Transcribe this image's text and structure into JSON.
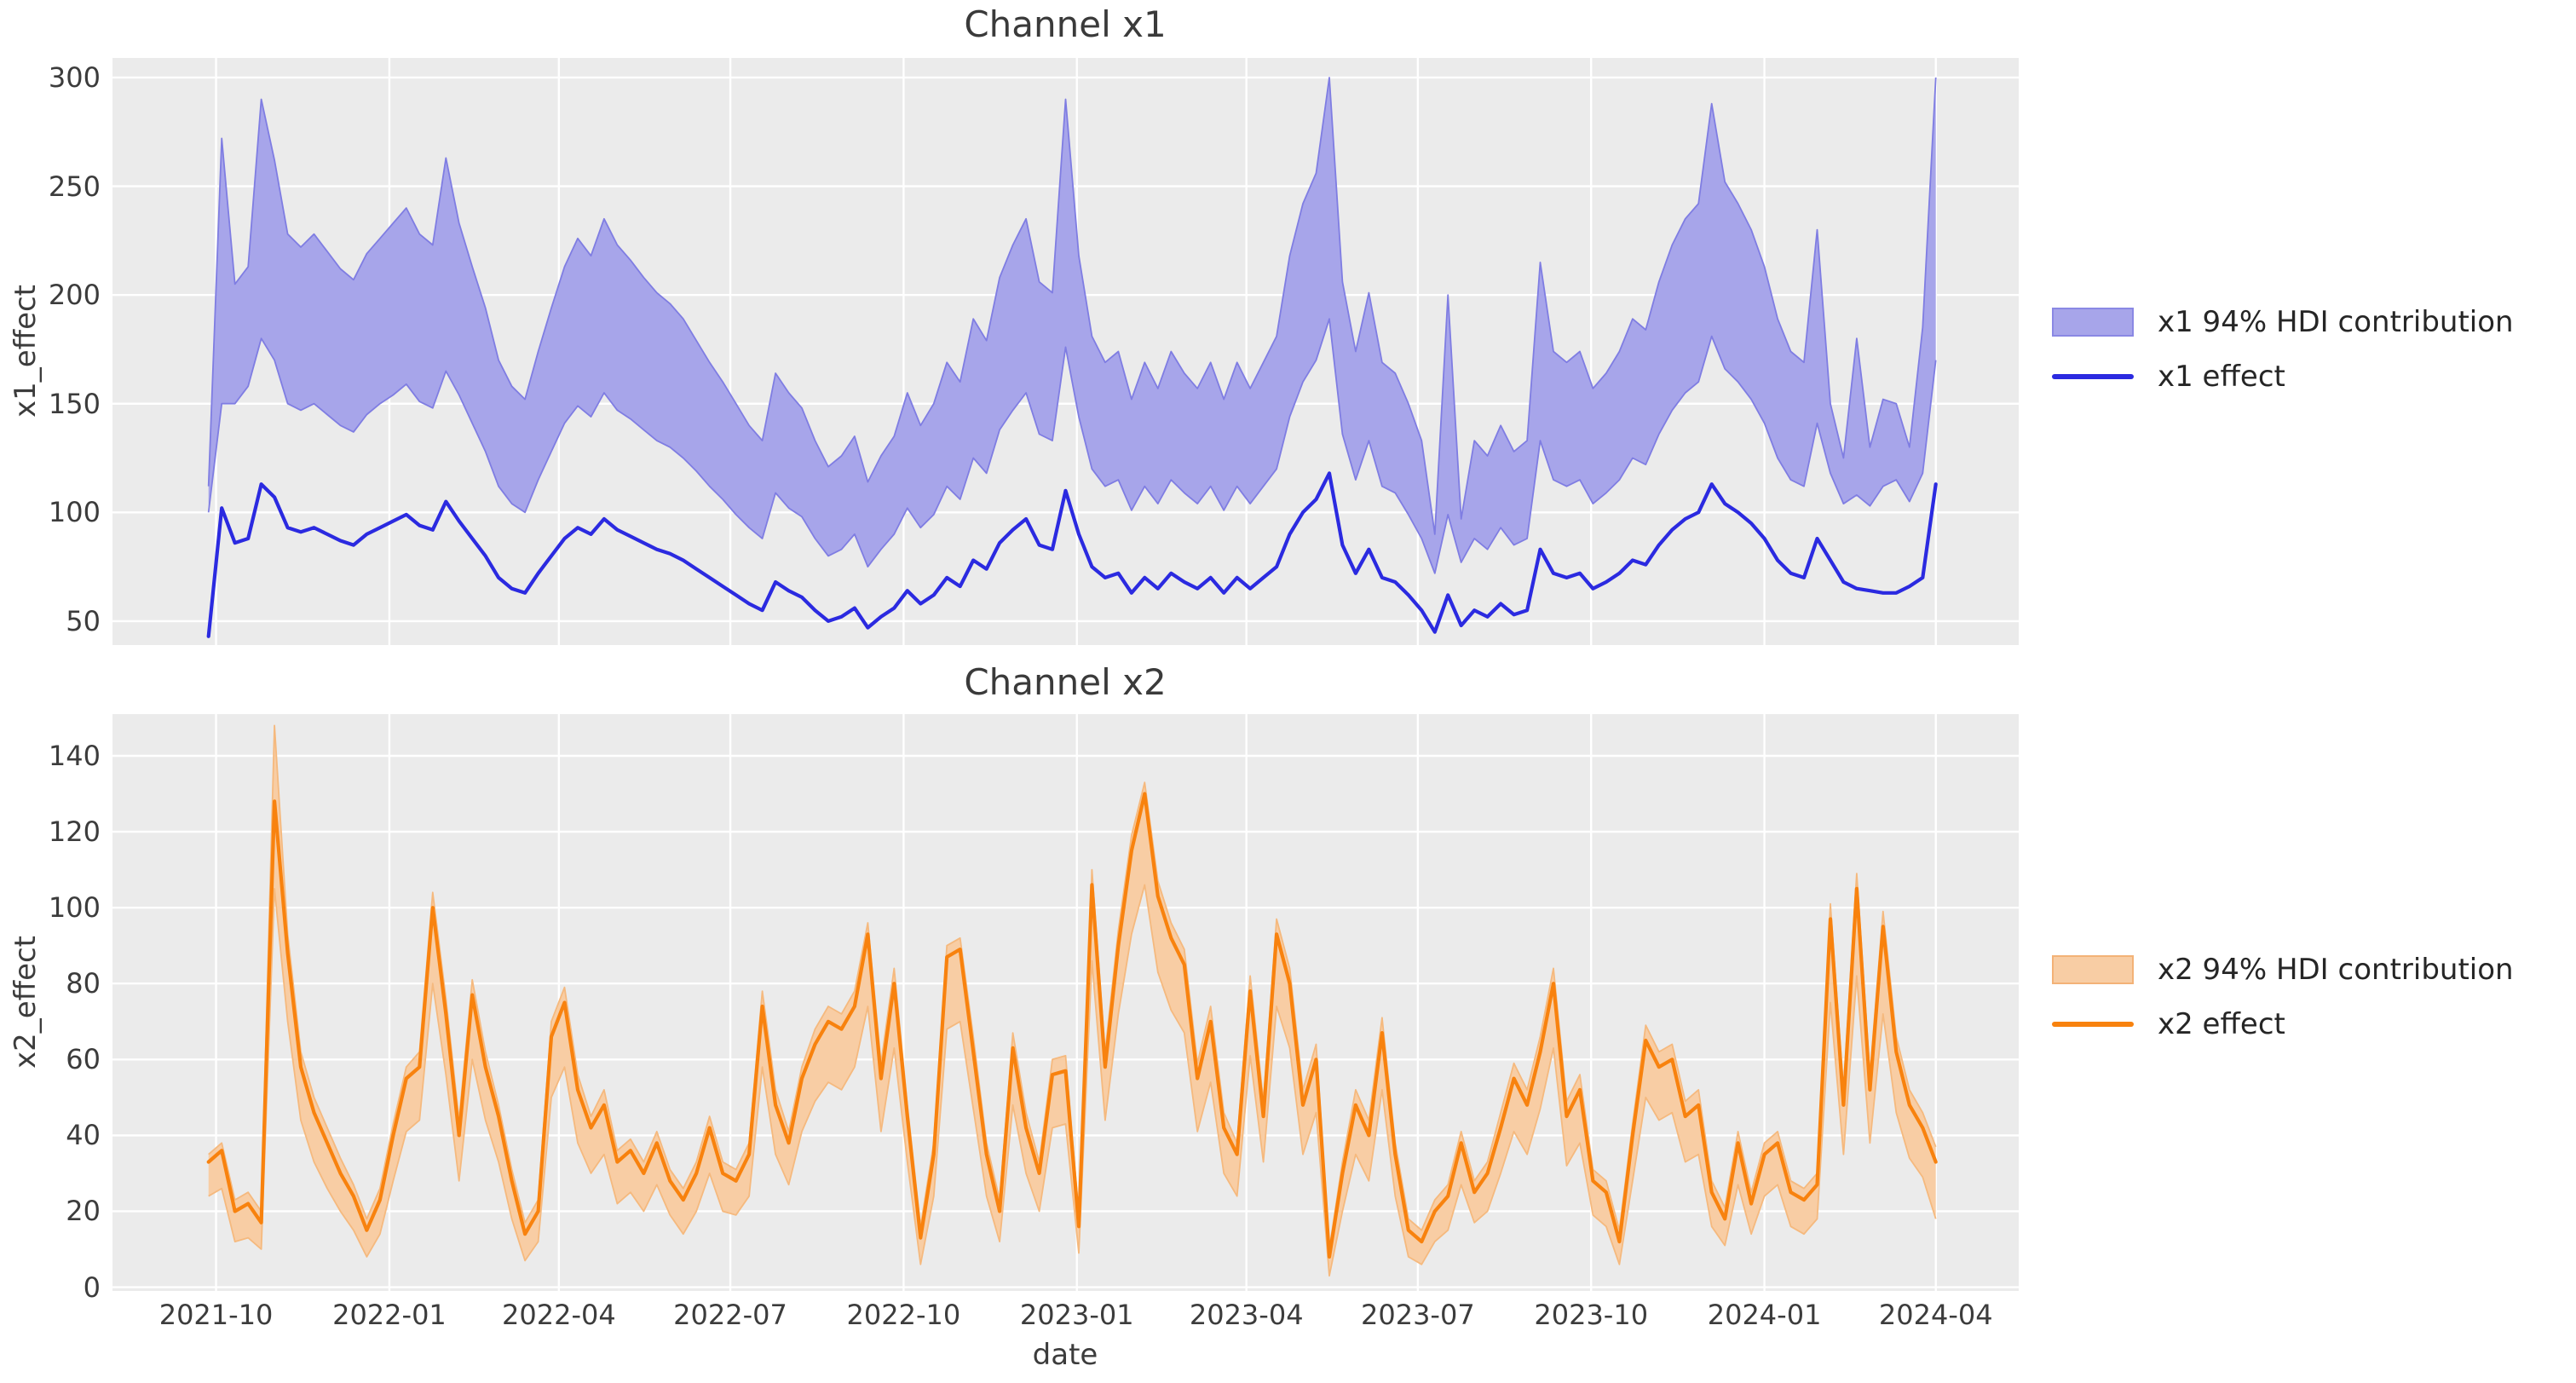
{
  "figure": {
    "background": "#ffffff",
    "plot_background": "#ebebeb",
    "grid_color": "#ffffff",
    "text_color": "#3c3c3c",
    "x_range": [
      "2021-08-07",
      "2024-05-15"
    ]
  },
  "chart_data": [
    {
      "type": "line",
      "title": "Channel x1",
      "ylabel": "x1_effect",
      "xlabel": "",
      "ylim": [
        39,
        309
      ],
      "grid": true,
      "legend_position": "right",
      "legend": [
        {
          "label": "x1 94% HDI contribution",
          "kind": "patch",
          "fill": "#a7a5ea",
          "edge": "#8a88e4"
        },
        {
          "label": "x1 effect",
          "kind": "line",
          "color": "#2b2ae0"
        }
      ],
      "line_color": "#2b2ae0",
      "band_fill": "#a7a5ea",
      "band_edge": "#7f7de2",
      "x_start_date": "2021-09-27",
      "x_step_days": 7,
      "yticks": [
        {
          "v": 50,
          "label": "50"
        },
        {
          "v": 100,
          "label": "100"
        },
        {
          "v": 150,
          "label": "150"
        },
        {
          "v": 200,
          "label": "200"
        },
        {
          "v": 250,
          "label": "250"
        },
        {
          "v": 300,
          "label": "300"
        }
      ],
      "xticks": [
        {
          "date": "2021-10-01",
          "label": "2021-10"
        },
        {
          "date": "2022-01-01",
          "label": "2022-01"
        },
        {
          "date": "2022-04-01",
          "label": "2022-04"
        },
        {
          "date": "2022-07-01",
          "label": "2022-07"
        },
        {
          "date": "2022-10-01",
          "label": "2022-10"
        },
        {
          "date": "2023-01-01",
          "label": "2023-01"
        },
        {
          "date": "2023-04-01",
          "label": "2023-04"
        },
        {
          "date": "2023-07-01",
          "label": "2023-07"
        },
        {
          "date": "2023-10-01",
          "label": "2023-10"
        },
        {
          "date": "2024-01-01",
          "label": "2024-01"
        },
        {
          "date": "2024-04-01",
          "label": "2024-04"
        }
      ],
      "values": [
        43,
        102,
        86,
        88,
        113,
        107,
        93,
        91,
        93,
        90,
        87,
        85,
        90,
        93,
        96,
        99,
        94,
        92,
        105,
        96,
        88,
        80,
        70,
        65,
        63,
        72,
        80,
        88,
        93,
        90,
        97,
        92,
        89,
        86,
        83,
        81,
        78,
        74,
        70,
        66,
        62,
        58,
        55,
        68,
        64,
        61,
        55,
        50,
        52,
        56,
        47,
        52,
        56,
        64,
        58,
        62,
        70,
        66,
        78,
        74,
        86,
        92,
        97,
        85,
        83,
        110,
        90,
        75,
        70,
        72,
        63,
        70,
        65,
        72,
        68,
        65,
        70,
        63,
        70,
        65,
        70,
        75,
        90,
        100,
        106,
        118,
        85,
        72,
        83,
        70,
        68,
        62,
        55,
        45,
        62,
        48,
        55,
        52,
        58,
        53,
        55,
        83,
        72,
        70,
        72,
        65,
        68,
        72,
        78,
        76,
        85,
        92,
        97,
        100,
        113,
        104,
        100,
        95,
        88,
        78,
        72,
        70,
        88,
        78,
        68,
        65,
        64,
        63,
        63,
        66,
        70,
        113
      ],
      "band_upper": [
        112,
        272,
        205,
        213,
        290,
        262,
        228,
        222,
        228,
        220,
        212,
        207,
        219,
        226,
        233,
        240,
        228,
        223,
        263,
        233,
        213,
        194,
        170,
        158,
        152,
        174,
        194,
        213,
        226,
        218,
        235,
        223,
        216,
        208,
        201,
        196,
        189,
        179,
        169,
        160,
        150,
        140,
        133,
        164,
        155,
        148,
        133,
        121,
        126,
        135,
        114,
        126,
        135,
        155,
        140,
        150,
        169,
        160,
        189,
        179,
        208,
        223,
        235,
        206,
        201,
        290,
        218,
        181,
        169,
        174,
        152,
        169,
        157,
        174,
        164,
        157,
        169,
        152,
        169,
        157,
        169,
        181,
        218,
        242,
        256,
        300,
        206,
        174,
        201,
        169,
        164,
        150,
        133,
        90,
        200,
        97,
        133,
        126,
        140,
        128,
        133,
        215,
        174,
        169,
        174,
        157,
        164,
        174,
        189,
        184,
        206,
        223,
        235,
        242,
        288,
        252,
        242,
        230,
        213,
        189,
        174,
        169,
        230,
        150,
        125,
        180,
        130,
        152,
        150,
        130,
        185,
        300
      ],
      "band_lower": [
        100,
        150,
        150,
        158,
        180,
        170,
        150,
        147,
        150,
        145,
        140,
        137,
        145,
        150,
        154,
        159,
        151,
        148,
        165,
        154,
        141,
        128,
        112,
        104,
        100,
        115,
        128,
        141,
        149,
        144,
        155,
        147,
        143,
        138,
        133,
        130,
        125,
        119,
        112,
        106,
        99,
        93,
        88,
        109,
        102,
        98,
        88,
        80,
        83,
        90,
        75,
        83,
        90,
        102,
        93,
        99,
        112,
        106,
        125,
        118,
        138,
        147,
        155,
        136,
        133,
        176,
        144,
        120,
        112,
        115,
        101,
        112,
        104,
        115,
        109,
        104,
        112,
        101,
        112,
        104,
        112,
        120,
        144,
        160,
        170,
        189,
        136,
        115,
        133,
        112,
        109,
        99,
        88,
        72,
        99,
        77,
        88,
        83,
        93,
        85,
        88,
        133,
        115,
        112,
        115,
        104,
        109,
        115,
        125,
        122,
        136,
        147,
        155,
        160,
        181,
        166,
        160,
        152,
        141,
        125,
        115,
        112,
        141,
        118,
        104,
        108,
        103,
        112,
        115,
        105,
        118,
        170
      ]
    },
    {
      "type": "line",
      "title": "Channel x2",
      "ylabel": "x2_effect",
      "xlabel": "date",
      "ylim": [
        -1,
        151
      ],
      "grid": true,
      "legend_position": "right",
      "legend": [
        {
          "label": "x2 94% HDI contribution",
          "kind": "patch",
          "fill": "#f8cda4",
          "edge": "#f3b277"
        },
        {
          "label": "x2 effect",
          "kind": "line",
          "color": "#f8820e"
        }
      ],
      "line_color": "#f8820e",
      "band_fill": "#f8cda4",
      "band_edge": "#f5b97e",
      "x_start_date": "2021-09-27",
      "x_step_days": 7,
      "yticks": [
        {
          "v": 0,
          "label": "0"
        },
        {
          "v": 20,
          "label": "20"
        },
        {
          "v": 40,
          "label": "40"
        },
        {
          "v": 60,
          "label": "60"
        },
        {
          "v": 80,
          "label": "80"
        },
        {
          "v": 100,
          "label": "100"
        },
        {
          "v": 120,
          "label": "120"
        },
        {
          "v": 140,
          "label": "140"
        }
      ],
      "xticks": [
        {
          "date": "2021-10-01",
          "label": "2021-10"
        },
        {
          "date": "2022-01-01",
          "label": "2022-01"
        },
        {
          "date": "2022-04-01",
          "label": "2022-04"
        },
        {
          "date": "2022-07-01",
          "label": "2022-07"
        },
        {
          "date": "2022-10-01",
          "label": "2022-10"
        },
        {
          "date": "2023-01-01",
          "label": "2023-01"
        },
        {
          "date": "2023-04-01",
          "label": "2023-04"
        },
        {
          "date": "2023-07-01",
          "label": "2023-07"
        },
        {
          "date": "2023-10-01",
          "label": "2023-10"
        },
        {
          "date": "2024-01-01",
          "label": "2024-01"
        },
        {
          "date": "2024-04-01",
          "label": "2024-04"
        }
      ],
      "values": [
        33,
        36,
        20,
        22,
        17,
        128,
        88,
        58,
        46,
        38,
        30,
        24,
        15,
        23,
        40,
        55,
        58,
        100,
        72,
        40,
        77,
        58,
        45,
        28,
        14,
        20,
        66,
        75,
        52,
        42,
        48,
        33,
        36,
        30,
        38,
        28,
        23,
        30,
        42,
        30,
        28,
        35,
        74,
        48,
        38,
        55,
        64,
        70,
        68,
        74,
        93,
        55,
        80,
        45,
        13,
        35,
        87,
        89,
        62,
        35,
        20,
        63,
        42,
        30,
        56,
        57,
        16,
        106,
        58,
        90,
        115,
        130,
        103,
        92,
        85,
        55,
        70,
        42,
        35,
        78,
        45,
        93,
        80,
        48,
        60,
        8,
        30,
        48,
        40,
        67,
        35,
        15,
        12,
        20,
        24,
        38,
        25,
        30,
        42,
        55,
        48,
        62,
        80,
        45,
        52,
        28,
        25,
        12,
        40,
        65,
        58,
        60,
        45,
        48,
        25,
        18,
        38,
        22,
        35,
        38,
        25,
        23,
        27,
        97,
        48,
        105,
        52,
        95,
        62,
        48,
        42,
        33
      ],
      "band_upper": [
        35,
        38,
        23,
        25,
        20,
        148,
        93,
        62,
        50,
        42,
        34,
        27,
        18,
        26,
        43,
        58,
        62,
        104,
        76,
        44,
        81,
        62,
        48,
        31,
        17,
        23,
        70,
        79,
        56,
        45,
        52,
        36,
        39,
        33,
        41,
        31,
        26,
        33,
        45,
        33,
        31,
        38,
        78,
        52,
        41,
        58,
        68,
        74,
        72,
        78,
        96,
        59,
        84,
        48,
        16,
        38,
        90,
        92,
        66,
        38,
        23,
        67,
        46,
        33,
        60,
        61,
        19,
        110,
        62,
        94,
        119,
        133,
        107,
        96,
        89,
        59,
        74,
        46,
        38,
        82,
        49,
        97,
        84,
        52,
        64,
        10,
        33,
        52,
        44,
        71,
        38,
        18,
        15,
        23,
        27,
        41,
        28,
        33,
        46,
        59,
        52,
        66,
        84,
        49,
        56,
        31,
        28,
        15,
        43,
        69,
        62,
        64,
        49,
        52,
        28,
        21,
        41,
        25,
        38,
        41,
        28,
        26,
        30,
        101,
        52,
        109,
        56,
        99,
        66,
        52,
        46,
        37
      ],
      "band_lower": [
        24,
        26,
        12,
        13,
        10,
        105,
        70,
        44,
        33,
        26,
        20,
        15,
        8,
        14,
        28,
        41,
        44,
        80,
        56,
        28,
        60,
        44,
        33,
        18,
        7,
        12,
        50,
        58,
        38,
        30,
        35,
        22,
        25,
        20,
        27,
        19,
        14,
        20,
        30,
        20,
        19,
        24,
        58,
        35,
        27,
        41,
        49,
        54,
        52,
        58,
        74,
        41,
        63,
        33,
        6,
        24,
        68,
        70,
        47,
        24,
        12,
        48,
        30,
        20,
        42,
        43,
        9,
        86,
        44,
        72,
        93,
        106,
        83,
        73,
        67,
        41,
        54,
        30,
        24,
        61,
        33,
        74,
        63,
        35,
        46,
        3,
        20,
        35,
        28,
        52,
        24,
        8,
        6,
        12,
        15,
        27,
        17,
        20,
        30,
        41,
        35,
        47,
        63,
        32,
        38,
        19,
        16,
        6,
        28,
        50,
        44,
        46,
        33,
        35,
        16,
        11,
        27,
        14,
        24,
        27,
        16,
        14,
        18,
        75,
        35,
        82,
        38,
        72,
        46,
        34,
        29,
        18
      ]
    }
  ]
}
